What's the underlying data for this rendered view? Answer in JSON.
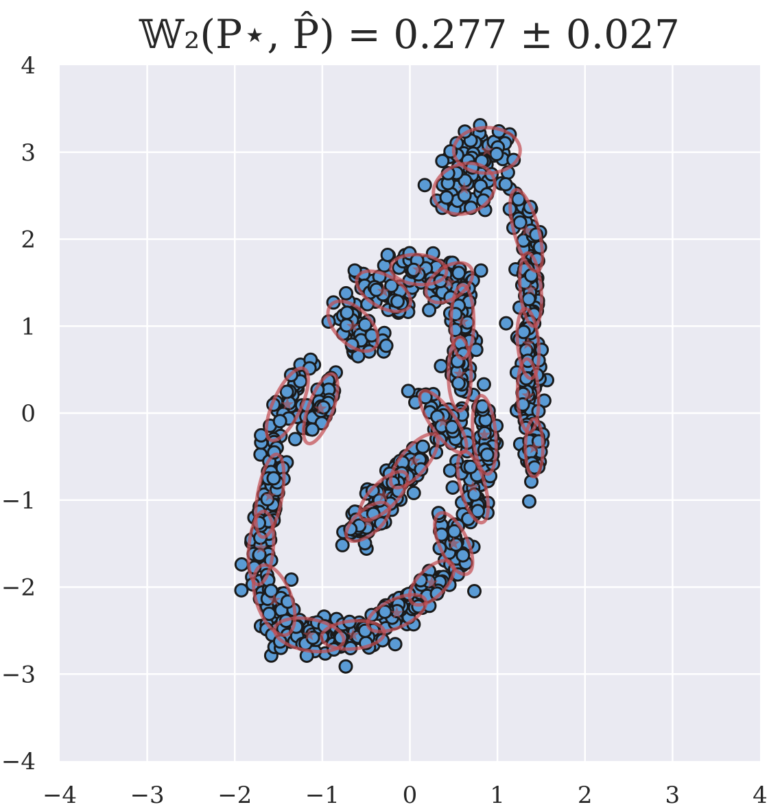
{
  "chart_data": {
    "type": "scatter",
    "title": "𝕎₂(P⋆, P̂) = 0.277 ± 0.027",
    "xlabel": "",
    "ylabel": "",
    "xlim": [
      -4,
      4
    ],
    "ylim": [
      -4,
      4
    ],
    "xticks": [
      -4,
      -3,
      -2,
      -1,
      0,
      1,
      2,
      3,
      4
    ],
    "yticks": [
      -4,
      -3,
      -2,
      -1,
      0,
      1,
      2,
      3,
      4
    ],
    "xtick_labels": [
      "−4",
      "−3",
      "−2",
      "−1",
      "0",
      "1",
      "2",
      "3",
      "4"
    ],
    "ytick_labels": [
      "−4",
      "−3",
      "−2",
      "−1",
      "0",
      "1",
      "2",
      "3",
      "4"
    ],
    "grid": true,
    "colors": {
      "background": "#eaeaf2",
      "points": "#5a9bd5",
      "point_edge": "#1a1a1a",
      "ellipses": "#c44e52"
    },
    "series": [
      {
        "kind": "sample-points",
        "spine": [
          [
            0.85,
            3.05
          ],
          [
            0.55,
            2.6
          ],
          [
            0.95,
            2.55
          ],
          [
            1.3,
            2.1
          ],
          [
            1.35,
            1.55
          ],
          [
            1.35,
            0.95
          ],
          [
            1.35,
            0.4
          ],
          [
            1.4,
            -0.2
          ],
          [
            1.4,
            -0.55
          ]
        ],
        "arc": [
          [
            -1.35,
            0.3
          ],
          [
            -1.5,
            -0.1
          ],
          [
            -1.6,
            -0.6
          ],
          [
            -1.65,
            -1.1
          ],
          [
            -1.7,
            -1.6
          ],
          [
            -1.6,
            -2.0
          ],
          [
            -1.5,
            -2.3
          ],
          [
            -1.3,
            -2.55
          ],
          [
            -1.0,
            -2.7
          ],
          [
            -0.6,
            -2.6
          ],
          [
            -0.2,
            -2.4
          ],
          [
            0.1,
            -2.1
          ],
          [
            0.35,
            -1.8
          ],
          [
            0.5,
            -1.5
          ],
          [
            0.65,
            -1.1
          ],
          [
            0.8,
            -0.7
          ],
          [
            0.9,
            -0.3
          ],
          [
            0.85,
            0.1
          ],
          [
            0.8,
            0.35
          ]
        ],
        "inner": [
          [
            -1.0,
            -0.15
          ],
          [
            -1.05,
            0.1
          ],
          [
            -0.95,
            0.35
          ]
        ],
        "upper_arc": [
          [
            -0.8,
            0.9
          ],
          [
            -0.6,
            1.2
          ],
          [
            -0.3,
            1.45
          ],
          [
            0.0,
            1.65
          ],
          [
            0.3,
            1.7
          ],
          [
            0.55,
            1.55
          ],
          [
            0.65,
            1.25
          ],
          [
            0.6,
            0.9
          ],
          [
            0.55,
            0.55
          ],
          [
            0.5,
            0.15
          ],
          [
            0.3,
            -0.2
          ],
          [
            0.1,
            -0.5
          ],
          [
            -0.15,
            -0.8
          ],
          [
            -0.35,
            -1.05
          ],
          [
            -0.5,
            -1.3
          ]
        ]
      },
      {
        "kind": "gaussian-components",
        "components": [
          {
            "center": [
              0.88,
              3.02
            ],
            "rx": 0.38,
            "ry": 0.26,
            "angle": 0
          },
          {
            "center": [
              0.62,
              2.58
            ],
            "rx": 0.36,
            "ry": 0.28,
            "angle": 20
          },
          {
            "center": [
              1.33,
              2.1
            ],
            "rx": 0.14,
            "ry": 0.48,
            "angle": 15
          },
          {
            "center": [
              1.38,
              1.42
            ],
            "rx": 0.12,
            "ry": 0.42,
            "angle": 5
          },
          {
            "center": [
              1.35,
              0.8
            ],
            "rx": 0.12,
            "ry": 0.4,
            "angle": 5
          },
          {
            "center": [
              1.35,
              0.2
            ],
            "rx": 0.12,
            "ry": 0.42,
            "angle": 2
          },
          {
            "center": [
              1.42,
              -0.4
            ],
            "rx": 0.1,
            "ry": 0.33,
            "angle": 0
          },
          {
            "center": [
              -1.4,
              0.1
            ],
            "rx": 0.16,
            "ry": 0.45,
            "angle": -25
          },
          {
            "center": [
              -1.02,
              0.05
            ],
            "rx": 0.14,
            "ry": 0.42,
            "angle": -20
          },
          {
            "center": [
              -1.6,
              -0.95
            ],
            "rx": 0.14,
            "ry": 0.48,
            "angle": -10
          },
          {
            "center": [
              -1.7,
              -1.55
            ],
            "rx": 0.14,
            "ry": 0.42,
            "angle": -5
          },
          {
            "center": [
              -1.55,
              -2.15
            ],
            "rx": 0.2,
            "ry": 0.42,
            "angle": 20
          },
          {
            "center": [
              -1.15,
              -2.55
            ],
            "rx": 0.4,
            "ry": 0.18,
            "angle": -10
          },
          {
            "center": [
              -0.65,
              -2.55
            ],
            "rx": 0.36,
            "ry": 0.16,
            "angle": 5
          },
          {
            "center": [
              -0.15,
              -2.3
            ],
            "rx": 0.36,
            "ry": 0.16,
            "angle": 25
          },
          {
            "center": [
              0.25,
              -1.95
            ],
            "rx": 0.32,
            "ry": 0.16,
            "angle": 45
          },
          {
            "center": [
              0.5,
              -1.5
            ],
            "rx": 0.16,
            "ry": 0.38,
            "angle": 25
          },
          {
            "center": [
              0.72,
              -0.85
            ],
            "rx": 0.14,
            "ry": 0.42,
            "angle": 15
          },
          {
            "center": [
              0.85,
              -0.25
            ],
            "rx": 0.13,
            "ry": 0.45,
            "angle": 5
          },
          {
            "center": [
              -0.65,
              1.0
            ],
            "rx": 0.35,
            "ry": 0.2,
            "angle": -45
          },
          {
            "center": [
              -0.3,
              1.4
            ],
            "rx": 0.34,
            "ry": 0.18,
            "angle": -30
          },
          {
            "center": [
              0.1,
              1.65
            ],
            "rx": 0.32,
            "ry": 0.17,
            "angle": -5
          },
          {
            "center": [
              0.45,
              1.5
            ],
            "rx": 0.3,
            "ry": 0.18,
            "angle": 35
          },
          {
            "center": [
              0.6,
              1.05
            ],
            "rx": 0.13,
            "ry": 0.42,
            "angle": 0
          },
          {
            "center": [
              0.57,
              0.45
            ],
            "rx": 0.13,
            "ry": 0.42,
            "angle": 0
          },
          {
            "center": [
              0.38,
              -0.1
            ],
            "rx": 0.14,
            "ry": 0.42,
            "angle": 35
          },
          {
            "center": [
              0.05,
              -0.55
            ],
            "rx": 0.38,
            "ry": 0.15,
            "angle": 50
          },
          {
            "center": [
              -0.3,
              -0.95
            ],
            "rx": 0.36,
            "ry": 0.15,
            "angle": 45
          },
          {
            "center": [
              -0.48,
              -1.25
            ],
            "rx": 0.3,
            "ry": 0.14,
            "angle": 40
          }
        ]
      }
    ]
  }
}
